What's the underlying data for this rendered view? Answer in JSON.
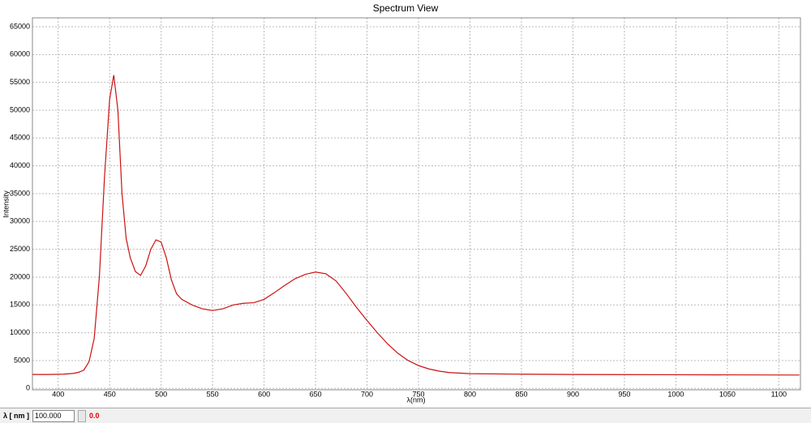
{
  "chart_data": {
    "type": "line",
    "title": "Spectrum View",
    "x_label": "λ(nm)",
    "y_label": "Intensity",
    "xlim": [
      375,
      1121
    ],
    "ylim": [
      -250,
      66600
    ],
    "xticks": [
      400,
      450,
      500,
      550,
      600,
      650,
      700,
      750,
      800,
      850,
      900,
      950,
      1000,
      1050,
      1100
    ],
    "yticks": [
      0,
      5000,
      10000,
      15000,
      20000,
      25000,
      30000,
      35000,
      40000,
      45000,
      50000,
      55000,
      60000,
      65000
    ],
    "grid": true,
    "x": [
      375,
      390,
      405,
      415,
      420,
      425,
      430,
      435,
      440,
      445,
      450,
      454,
      458,
      462,
      466,
      470,
      475,
      480,
      485,
      490,
      495,
      500,
      505,
      510,
      515,
      520,
      530,
      540,
      550,
      560,
      570,
      580,
      590,
      600,
      610,
      620,
      630,
      640,
      650,
      660,
      670,
      680,
      690,
      700,
      710,
      720,
      730,
      740,
      750,
      760,
      770,
      780,
      800,
      850,
      900,
      1000,
      1120
    ],
    "series": [
      {
        "name": "Intensity",
        "color": "#cc1111",
        "values": [
          2500,
          2500,
          2550,
          2700,
          2900,
          3300,
          4800,
          9000,
          20000,
          38000,
          52000,
          56300,
          50000,
          35000,
          27000,
          23500,
          21000,
          20300,
          22000,
          25000,
          26700,
          26300,
          23500,
          19500,
          17000,
          16000,
          15000,
          14300,
          14000,
          14300,
          15000,
          15300,
          15400,
          16000,
          17200,
          18500,
          19700,
          20500,
          20900,
          20600,
          19300,
          17000,
          14500,
          12200,
          10000,
          8000,
          6300,
          5000,
          4100,
          3500,
          3100,
          2850,
          2650,
          2550,
          2500,
          2450,
          2400
        ]
      }
    ]
  },
  "toolbar": {
    "field_label": "λ [ nm ]",
    "field_value": "100.000",
    "readout": "0.0"
  }
}
